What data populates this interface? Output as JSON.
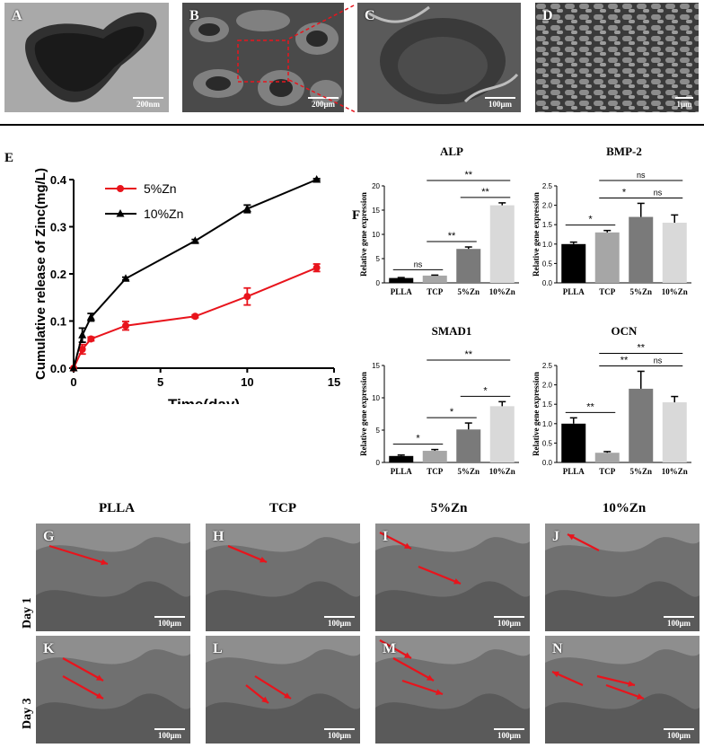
{
  "top_panels": [
    {
      "letter": "A",
      "scale": "200nm"
    },
    {
      "letter": "B",
      "scale": "200μm"
    },
    {
      "letter": "C",
      "scale": "100μm"
    },
    {
      "letter": "D",
      "scale": "1μm"
    }
  ],
  "panel_E_letter": "E",
  "panel_F_letter": "F",
  "columns": [
    "PLLA",
    "TCP",
    "5%Zn",
    "10%Zn"
  ],
  "rows": [
    "Day 1",
    "Day 3"
  ],
  "bottom_panels": [
    {
      "letter": "G",
      "scale": "100μm"
    },
    {
      "letter": "H",
      "scale": "100μm"
    },
    {
      "letter": "I",
      "scale": "100μm"
    },
    {
      "letter": "J",
      "scale": "100μm"
    },
    {
      "letter": "K",
      "scale": "100μm"
    },
    {
      "letter": "L",
      "scale": "100μm"
    },
    {
      "letter": "M",
      "scale": "100μm"
    },
    {
      "letter": "N",
      "scale": "100μm"
    }
  ],
  "colors": {
    "series_5zn": "#e8141c",
    "series_10zn": "#000000",
    "arrow": "#e8141c",
    "bar_plla": "#000000",
    "bar_tcp": "#a6a6a6",
    "bar_5zn": "#7a7a7a",
    "bar_10zn": "#d9d9d9"
  },
  "chart_data": [
    {
      "type": "line",
      "xlabel": "Time(day)",
      "ylabel": "Cumulative release of Zinc(mg/L)",
      "xlim": [
        0,
        15
      ],
      "ylim": [
        0,
        0.4
      ],
      "xticks": [
        "0",
        "5",
        "10",
        "15"
      ],
      "yticks": [
        "0.0",
        "0.1",
        "0.2",
        "0.3",
        "0.4"
      ],
      "legend_position": "top-left",
      "series": [
        {
          "name": "5%Zn",
          "x": [
            0,
            0.5,
            1,
            3,
            7,
            10,
            14
          ],
          "y": [
            0,
            0.04,
            0.062,
            0.09,
            0.11,
            0.152,
            0.213
          ],
          "err": [
            0,
            0.01,
            0.004,
            0.009,
            0.003,
            0.018,
            0.008
          ]
        },
        {
          "name": "10%Zn",
          "x": [
            0,
            0.5,
            1,
            3,
            7,
            10,
            14
          ],
          "y": [
            0,
            0.07,
            0.108,
            0.19,
            0.27,
            0.338,
            0.4
          ],
          "err": [
            0,
            0.015,
            0.008,
            0.003,
            0.003,
            0.008,
            0.002
          ]
        }
      ]
    },
    {
      "type": "bar",
      "title": "ALP",
      "ylabel": "Relative gene expression",
      "categories": [
        "PLLA",
        "TCP",
        "5%Zn",
        "10%Zn"
      ],
      "values": [
        1.0,
        1.5,
        7.0,
        16.0
      ],
      "err": [
        0.1,
        0.1,
        0.4,
        0.5
      ],
      "ylim": [
        0,
        20
      ],
      "yticks": [
        "0",
        "5",
        "10",
        "15",
        "20"
      ],
      "comparisons": [
        {
          "pair": [
            0,
            1
          ],
          "label": "ns"
        },
        {
          "pair": [
            1,
            2
          ],
          "label": "**"
        },
        {
          "pair": [
            2,
            3
          ],
          "label": "**"
        },
        {
          "pair": [
            1,
            3
          ],
          "label": "**"
        }
      ]
    },
    {
      "type": "bar",
      "title": "BMP-2",
      "ylabel": "Relative gene expression",
      "categories": [
        "PLLA",
        "TCP",
        "5%Zn",
        "10%Zn"
      ],
      "values": [
        1.0,
        1.3,
        1.7,
        1.55
      ],
      "err": [
        0.05,
        0.05,
        0.35,
        0.2
      ],
      "ylim": [
        0,
        2.5
      ],
      "yticks": [
        "0.0",
        "0.5",
        "1.0",
        "1.5",
        "2.0",
        "2.5"
      ],
      "comparisons": [
        {
          "pair": [
            0,
            1
          ],
          "label": "*"
        },
        {
          "pair": [
            1,
            2
          ],
          "label": "*"
        },
        {
          "pair": [
            2,
            3
          ],
          "label": "ns"
        },
        {
          "pair": [
            1,
            3
          ],
          "label": "ns"
        }
      ]
    },
    {
      "type": "bar",
      "title": "SMAD1",
      "ylabel": "Relative gene expression",
      "categories": [
        "PLLA",
        "TCP",
        "5%Zn",
        "10%Zn"
      ],
      "values": [
        1.0,
        1.8,
        5.1,
        8.7
      ],
      "err": [
        0.15,
        0.2,
        1.0,
        0.7
      ],
      "ylim": [
        0,
        15
      ],
      "yticks": [
        "0",
        "5",
        "10",
        "15"
      ],
      "comparisons": [
        {
          "pair": [
            0,
            1
          ],
          "label": "*"
        },
        {
          "pair": [
            1,
            2
          ],
          "label": "*"
        },
        {
          "pair": [
            2,
            3
          ],
          "label": "*"
        },
        {
          "pair": [
            1,
            3
          ],
          "label": "**"
        }
      ]
    },
    {
      "type": "bar",
      "title": "OCN",
      "ylabel": "Relative gene expression",
      "categories": [
        "PLLA",
        "TCP",
        "5%Zn",
        "10%Zn"
      ],
      "values": [
        1.0,
        0.25,
        1.9,
        1.55
      ],
      "err": [
        0.15,
        0.03,
        0.45,
        0.15
      ],
      "ylim": [
        0,
        2.5
      ],
      "yticks": [
        "0.0",
        "0.5",
        "1.0",
        "1.5",
        "2.0",
        "2.5"
      ],
      "comparisons": [
        {
          "pair": [
            0,
            1
          ],
          "label": "**"
        },
        {
          "pair": [
            1,
            2
          ],
          "label": "**"
        },
        {
          "pair": [
            2,
            3
          ],
          "label": "ns"
        },
        {
          "pair": [
            1,
            3
          ],
          "label": "**"
        }
      ]
    }
  ]
}
